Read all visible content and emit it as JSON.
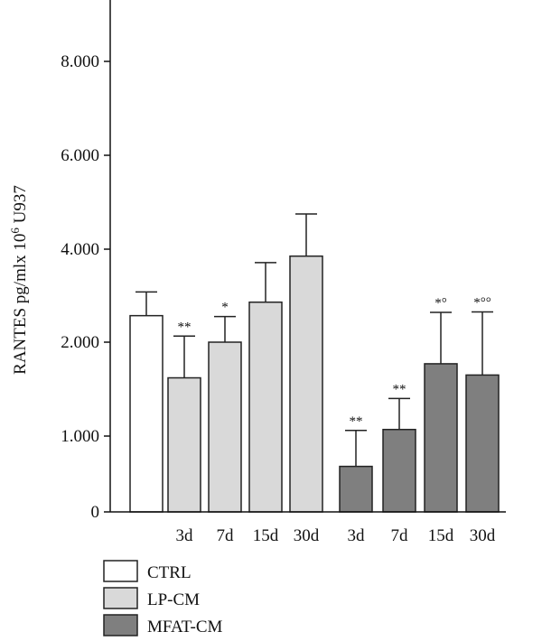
{
  "chart_data": {
    "type": "bar",
    "ylabel": "RANTES pg/mlx 10",
    "ylabel_sup": "6",
    "ylabel_suffix": " U937",
    "yticks": [
      {
        "value": 0,
        "label": "0"
      },
      {
        "value": 1000,
        "label": "1.000"
      },
      {
        "value": 2000,
        "label": "2.000"
      },
      {
        "value": 4000,
        "label": "4.000"
      },
      {
        "value": 6000,
        "label": "6.000"
      },
      {
        "value": 8000,
        "label": "8.000"
      }
    ],
    "ylim": [
      0,
      10000
    ],
    "bars": [
      {
        "group": "CTRL",
        "label": "",
        "value": 2570,
        "error": 510,
        "annotation": ""
      },
      {
        "group": "LP-CM",
        "label": "3d",
        "value": 1620,
        "error": 510,
        "annotation": "**"
      },
      {
        "group": "LP-CM",
        "label": "7d",
        "value": 2000,
        "error": 550,
        "annotation": "*"
      },
      {
        "group": "LP-CM",
        "label": "15d",
        "value": 2860,
        "error": 850,
        "annotation": ""
      },
      {
        "group": "LP-CM",
        "label": "30d",
        "value": 3850,
        "error": 900,
        "annotation": ""
      },
      {
        "group": "MFAT-CM",
        "label": "3d",
        "value": 600,
        "error": 460,
        "annotation": "**"
      },
      {
        "group": "MFAT-CM",
        "label": "7d",
        "value": 1070,
        "error": 330,
        "annotation": "**"
      },
      {
        "group": "MFAT-CM",
        "label": "15d",
        "value": 1770,
        "error": 870,
        "annotation": "*°"
      },
      {
        "group": "MFAT-CM",
        "label": "30d",
        "value": 1650,
        "error": 1000,
        "annotation": "*°°"
      }
    ],
    "legend": [
      {
        "label": "CTRL",
        "color": "#ffffff"
      },
      {
        "label": "LP-CM",
        "color": "#d9d9d9"
      },
      {
        "label": "MFAT-CM",
        "color": "#7f7f7f"
      }
    ],
    "legend_position": "bottom-left",
    "grid": false
  }
}
